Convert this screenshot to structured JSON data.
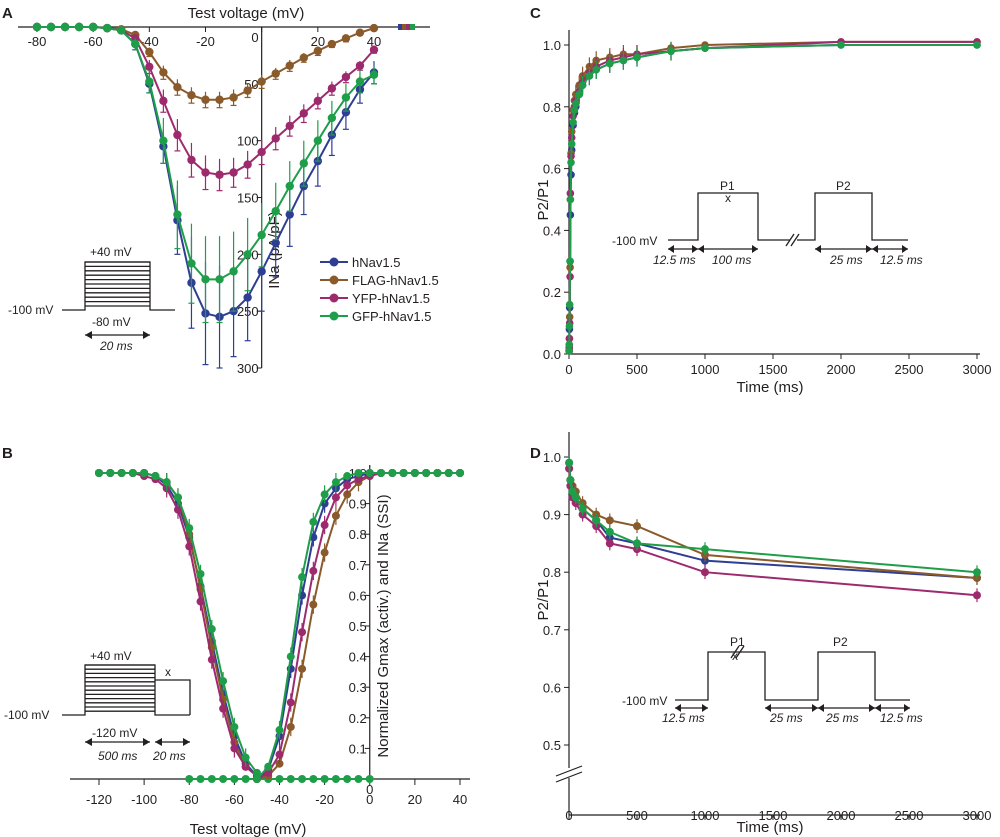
{
  "colors": {
    "hNav1.5": "#2e3f93",
    "FLAG-hNav1.5": "#8b5a2b",
    "YFP-hNav1.5": "#9e2a6e",
    "GFP-hNav1.5": "#1f9e4a",
    "axis": "#231f20"
  },
  "legend": {
    "entries": [
      "hNav1.5",
      "FLAG-hNav1.5",
      "YFP-hNav1.5",
      "GFP-hNav1.5"
    ],
    "placement": "center-right of panel A"
  },
  "chart_data": [
    {
      "panel": "A",
      "type": "line",
      "title": "",
      "xlabel": "Test voltage (mV)",
      "ylabel": "INa (pA/pF)",
      "xlim": [
        -85,
        45
      ],
      "ylim": [
        0,
        300
      ],
      "y_inverted": true,
      "xticks": [
        -80,
        -60,
        -40,
        -20,
        0,
        20,
        40
      ],
      "yticks": [
        50,
        100,
        150,
        200,
        250,
        300
      ],
      "y_zero_label": "0",
      "x": [
        -80,
        -75,
        -70,
        -65,
        -60,
        -55,
        -50,
        -45,
        -40,
        -35,
        -30,
        -25,
        -20,
        -15,
        -10,
        -5,
        0,
        5,
        10,
        15,
        20,
        25,
        30,
        35,
        40
      ],
      "series": [
        {
          "name": "hNav1.5",
          "values": [
            0,
            0,
            0,
            0,
            0,
            1,
            3,
            15,
            50,
            105,
            170,
            225,
            252,
            255,
            250,
            238,
            215,
            190,
            165,
            140,
            118,
            95,
            75,
            55,
            40
          ],
          "err": [
            0,
            0,
            0,
            0,
            0,
            1,
            2,
            5,
            8,
            15,
            30,
            40,
            45,
            45,
            40,
            38,
            35,
            30,
            28,
            25,
            22,
            18,
            15,
            12,
            10
          ]
        },
        {
          "name": "FLAG-hNav1.5",
          "values": [
            0,
            0,
            0,
            0,
            0,
            1,
            2,
            7,
            22,
            40,
            53,
            60,
            64,
            64,
            62,
            56,
            48,
            41,
            34,
            27,
            21,
            15,
            10,
            5,
            1
          ],
          "err": [
            0,
            0,
            0,
            0,
            0,
            1,
            1,
            2,
            4,
            6,
            7,
            7,
            7,
            7,
            7,
            6,
            6,
            5,
            5,
            4,
            4,
            3,
            3,
            2,
            1
          ]
        },
        {
          "name": "YFP-hNav1.5",
          "values": [
            0,
            0,
            0,
            0,
            0,
            1,
            3,
            10,
            35,
            65,
            95,
            117,
            128,
            130,
            128,
            121,
            110,
            98,
            87,
            76,
            65,
            54,
            44,
            34,
            20
          ],
          "err": [
            0,
            0,
            0,
            0,
            0,
            1,
            1,
            3,
            6,
            10,
            14,
            15,
            15,
            14,
            13,
            12,
            11,
            10,
            9,
            8,
            7,
            6,
            5,
            4,
            3
          ]
        },
        {
          "name": "GFP-hNav1.5",
          "values": [
            0,
            0,
            0,
            0,
            0,
            1,
            3,
            15,
            48,
            100,
            165,
            208,
            222,
            222,
            215,
            200,
            183,
            162,
            140,
            120,
            100,
            80,
            62,
            48,
            42
          ],
          "err": [
            0,
            0,
            0,
            0,
            0,
            1,
            2,
            5,
            10,
            20,
            30,
            35,
            38,
            38,
            35,
            32,
            28,
            25,
            22,
            20,
            18,
            15,
            12,
            10,
            8
          ]
        }
      ],
      "protocol": {
        "top": "+40 mV",
        "hold": "-100 mV",
        "bottom": "-80 mV",
        "duration": "20 ms"
      }
    },
    {
      "panel": "B",
      "type": "line",
      "title": "",
      "xlabel": "Test voltage (mV)",
      "ylabel": "Normalized Gmax (activ.) and INa (SSI)",
      "xlim": [
        -125,
        45
      ],
      "ylim": [
        0,
        1.0
      ],
      "xticks": [
        -120,
        -100,
        -80,
        -60,
        -40,
        -20,
        0,
        20,
        40
      ],
      "yticks": [
        0.1,
        0.2,
        0.3,
        0.4,
        0.5,
        0.6,
        0.7,
        0.8,
        0.9,
        1.0
      ],
      "ssi_x": [
        -120,
        -115,
        -110,
        -105,
        -100,
        -95,
        -90,
        -85,
        -80,
        -75,
        -70,
        -65,
        -60,
        -55,
        -50,
        -45,
        -40,
        -35,
        -30,
        -25,
        -20,
        -15,
        -10,
        -5,
        0,
        5,
        10,
        15,
        20,
        25,
        30,
        35,
        40
      ],
      "activ_x": [
        -120,
        -115,
        -110,
        -105,
        -100,
        -95,
        -90,
        -85,
        -80,
        -75,
        -70,
        -65,
        -60,
        -55,
        -50,
        -45,
        -40,
        -35,
        -30,
        -25,
        -20,
        -15,
        -10,
        -5,
        0,
        5,
        10,
        15,
        20,
        25,
        30,
        35,
        40
      ],
      "series": [
        {
          "name": "hNav1.5",
          "ssi": [
            1.0,
            1.0,
            1.0,
            1.0,
            1.0,
            0.99,
            0.96,
            0.9,
            0.79,
            0.63,
            0.45,
            0.28,
            0.14,
            0.05,
            0.01,
            null,
            null,
            null,
            null,
            null,
            null,
            null,
            null,
            null,
            null,
            null,
            null,
            null,
            null,
            null,
            null,
            null,
            null
          ],
          "activ": [
            null,
            null,
            null,
            null,
            null,
            null,
            null,
            null,
            null,
            null,
            null,
            null,
            null,
            null,
            0.0,
            0.03,
            0.14,
            0.36,
            0.6,
            0.79,
            0.9,
            0.95,
            0.98,
            0.99,
            1.0,
            1.0,
            1.0,
            1.0,
            1.0,
            1.0,
            1.0,
            1.0,
            1.0
          ]
        },
        {
          "name": "FLAG-hNav1.5",
          "ssi": [
            1.0,
            1.0,
            1.0,
            1.0,
            1.0,
            0.99,
            0.97,
            0.92,
            0.8,
            0.62,
            0.43,
            0.26,
            0.12,
            0.04,
            0.01,
            null,
            null,
            null,
            null,
            null,
            null,
            null,
            null,
            null,
            null,
            null,
            null,
            null,
            null,
            null,
            null,
            null,
            null
          ],
          "activ": [
            null,
            null,
            null,
            null,
            null,
            null,
            null,
            null,
            null,
            null,
            null,
            null,
            null,
            null,
            0.0,
            0.01,
            0.05,
            0.17,
            0.36,
            0.57,
            0.74,
            0.86,
            0.93,
            0.97,
            0.99,
            1.0,
            1.0,
            1.0,
            1.0,
            1.0,
            1.0,
            1.0,
            1.0
          ]
        },
        {
          "name": "YFP-hNav1.5",
          "ssi": [
            1.0,
            1.0,
            1.0,
            1.0,
            0.99,
            0.98,
            0.95,
            0.88,
            0.76,
            0.58,
            0.39,
            0.23,
            0.1,
            0.04,
            0.01,
            null,
            null,
            null,
            null,
            null,
            null,
            null,
            null,
            null,
            null,
            null,
            null,
            null,
            null,
            null,
            null,
            null,
            null
          ],
          "activ": [
            null,
            null,
            null,
            null,
            null,
            null,
            null,
            null,
            null,
            null,
            null,
            null,
            null,
            null,
            0.0,
            0.02,
            0.08,
            0.25,
            0.48,
            0.68,
            0.83,
            0.92,
            0.96,
            0.98,
            0.99,
            1.0,
            1.0,
            1.0,
            1.0,
            1.0,
            1.0,
            1.0,
            1.0
          ]
        },
        {
          "name": "GFP-hNav1.5",
          "ssi": [
            1.0,
            1.0,
            1.0,
            1.0,
            1.0,
            0.99,
            0.97,
            0.92,
            0.82,
            0.67,
            0.49,
            0.32,
            0.17,
            0.07,
            0.02,
            null,
            null,
            null,
            null,
            null,
            null,
            null,
            null,
            null,
            null,
            null,
            null,
            null,
            null,
            null,
            null,
            null,
            null
          ],
          "activ": [
            null,
            null,
            null,
            null,
            null,
            null,
            null,
            null,
            null,
            null,
            null,
            null,
            null,
            null,
            0.0,
            0.04,
            0.16,
            0.4,
            0.66,
            0.84,
            0.93,
            0.97,
            0.99,
            1.0,
            1.0,
            1.0,
            1.0,
            1.0,
            1.0,
            1.0,
            1.0,
            1.0,
            1.0
          ]
        }
      ],
      "gfp_zero_baseline_x": [
        -80,
        -75,
        -70,
        -65,
        -60,
        -55,
        -50,
        -45,
        -40,
        -35,
        -30,
        -25,
        -20,
        -15,
        -10,
        -5,
        0
      ],
      "protocol": {
        "top": "+40 mV",
        "hold": "-100 mV",
        "bottom": "-120 mV",
        "marker": "x",
        "dur1": "500 ms",
        "dur2": "20 ms"
      }
    },
    {
      "panel": "C",
      "type": "line",
      "title": "",
      "xlabel": "Time (ms)",
      "ylabel": "P2/P1",
      "xlim": [
        0,
        3000
      ],
      "ylim": [
        0,
        1.05
      ],
      "xticks": [
        0,
        500,
        1000,
        1500,
        2000,
        2500,
        3000
      ],
      "yticks": [
        0.0,
        0.2,
        0.4,
        0.6,
        0.8,
        1.0
      ],
      "x": [
        1,
        2,
        3,
        5,
        8,
        10,
        15,
        20,
        30,
        40,
        50,
        75,
        100,
        150,
        200,
        300,
        400,
        500,
        750,
        1000,
        2000,
        3000
      ],
      "series": [
        {
          "name": "hNav1.5",
          "values": [
            0.01,
            0.03,
            0.08,
            0.15,
            0.3,
            0.45,
            0.58,
            0.66,
            0.74,
            0.78,
            0.8,
            0.84,
            0.87,
            0.9,
            0.92,
            0.94,
            0.95,
            0.96,
            0.98,
            0.99,
            1.0,
            1.0
          ]
        },
        {
          "name": "FLAG-hNav1.5",
          "values": [
            0.01,
            0.02,
            0.05,
            0.12,
            0.28,
            0.5,
            0.65,
            0.72,
            0.79,
            0.82,
            0.84,
            0.87,
            0.9,
            0.93,
            0.95,
            0.96,
            0.97,
            0.97,
            0.99,
            1.0,
            1.01,
            1.01
          ]
        },
        {
          "name": "YFP-hNav1.5",
          "values": [
            0.01,
            0.02,
            0.05,
            0.1,
            0.25,
            0.52,
            0.64,
            0.7,
            0.77,
            0.8,
            0.82,
            0.85,
            0.88,
            0.91,
            0.93,
            0.95,
            0.96,
            0.97,
            0.98,
            0.99,
            1.01,
            1.01
          ]
        },
        {
          "name": "GFP-hNav1.5",
          "values": [
            0.01,
            0.03,
            0.09,
            0.16,
            0.3,
            0.5,
            0.62,
            0.68,
            0.75,
            0.79,
            0.81,
            0.84,
            0.87,
            0.9,
            0.92,
            0.94,
            0.95,
            0.96,
            0.98,
            0.99,
            1.0,
            1.0
          ]
        }
      ],
      "protocol": {
        "hold": "-100 mV",
        "p1": "P1",
        "p2": "P2",
        "marker": "x",
        "d1": "12.5 ms",
        "d2": "100 ms",
        "d3": "25 ms",
        "d4": "12.5 ms"
      }
    },
    {
      "panel": "D",
      "type": "line",
      "title": "",
      "xlabel": "Time (ms)",
      "ylabel": "P2/P1",
      "xlim": [
        0,
        3000
      ],
      "ylim": [
        0.45,
        1.05
      ],
      "axis_break": true,
      "xticks": [
        0,
        500,
        1000,
        1500,
        2000,
        2500,
        3000
      ],
      "yticks": [
        0.5,
        0.6,
        0.7,
        0.8,
        0.9,
        1.0
      ],
      "x": [
        1,
        10,
        25,
        50,
        100,
        200,
        300,
        500,
        1000,
        3000
      ],
      "series": [
        {
          "name": "hNav1.5",
          "values": [
            0.99,
            0.96,
            0.94,
            0.93,
            0.91,
            0.89,
            0.86,
            0.85,
            0.82,
            0.79
          ]
        },
        {
          "name": "FLAG-hNav1.5",
          "values": [
            0.98,
            0.96,
            0.95,
            0.94,
            0.92,
            0.9,
            0.89,
            0.88,
            0.83,
            0.79
          ]
        },
        {
          "name": "YFP-hNav1.5",
          "values": [
            0.98,
            0.95,
            0.93,
            0.92,
            0.9,
            0.88,
            0.85,
            0.84,
            0.8,
            0.76
          ]
        },
        {
          "name": "GFP-hNav1.5",
          "values": [
            0.99,
            0.96,
            0.94,
            0.93,
            0.91,
            0.89,
            0.87,
            0.85,
            0.84,
            0.8
          ]
        }
      ],
      "protocol": {
        "hold": "-100 mV",
        "p1": "P1",
        "p2": "P2",
        "marker": "x",
        "d1": "12.5 ms",
        "d2": "25 ms",
        "d3": "25 ms",
        "d4": "12.5 ms"
      }
    }
  ],
  "panels": {
    "A": {
      "label": "A",
      "xlabel": "Test voltage (mV)",
      "ylabel": "INa (pA/pF)"
    },
    "B": {
      "label": "B",
      "xlabel": "Test voltage (mV)",
      "ylabel": "Normalized Gmax (activ.) and INa (SSI)"
    },
    "C": {
      "label": "C",
      "xlabel": "Time (ms)",
      "ylabel": "P2/P1"
    },
    "D": {
      "label": "D",
      "xlabel": "Time (ms)",
      "ylabel": "P2/P1"
    }
  }
}
